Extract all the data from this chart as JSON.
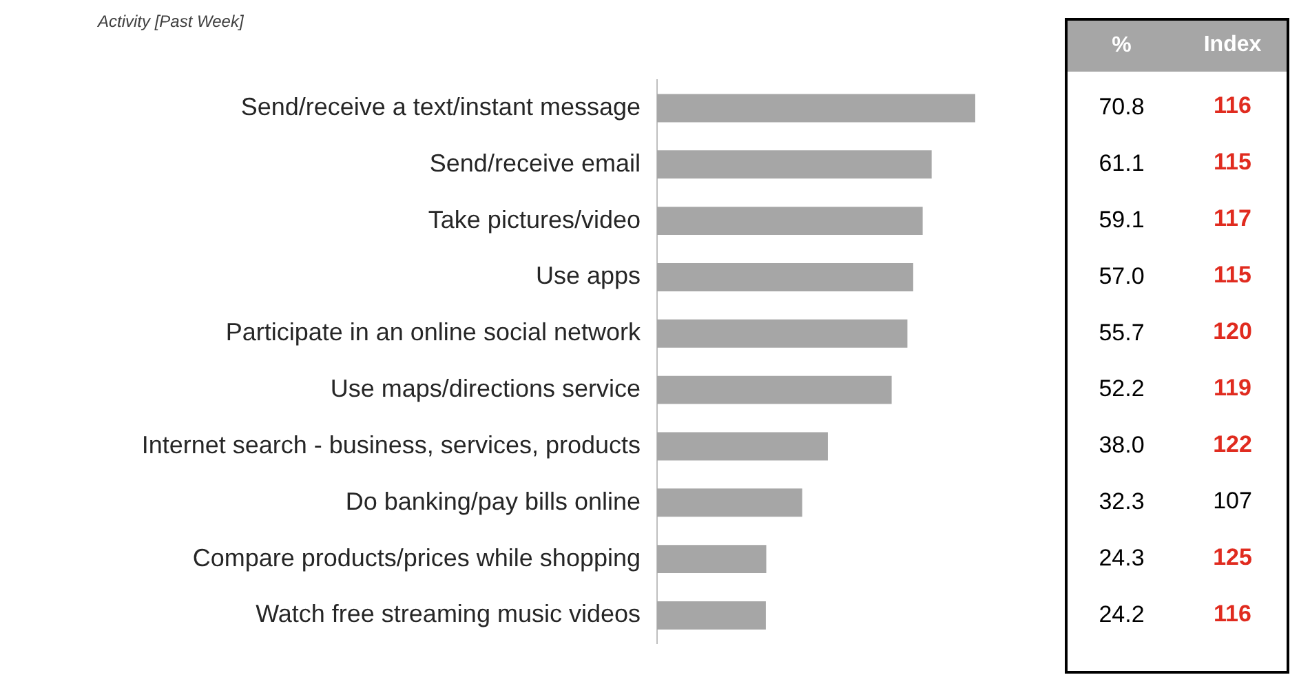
{
  "chart_data": [
    {
      "type": "bar",
      "orientation": "horizontal",
      "title": "Activity [Past Week]",
      "categories": [
        "Send/receive a text/instant message",
        "Send/receive email",
        "Take pictures/video",
        "Use apps",
        "Participate in an online social network",
        "Use maps/directions service",
        "Internet search - business, services, products",
        "Do banking/pay bills online",
        "Compare products/prices while shopping",
        "Watch free streaming music videos"
      ],
      "series": [
        {
          "name": "%",
          "color": "#a6a6a6",
          "values": [
            70.8,
            61.1,
            59.1,
            57.0,
            55.7,
            52.2,
            38.0,
            32.3,
            24.3,
            24.2
          ],
          "value_labels": [
            "70.8",
            "61.1",
            "59.1",
            "57.0",
            "55.7",
            "52.2",
            "38.0",
            "32.3",
            "24.3",
            "24.2"
          ]
        }
      ],
      "tick_labels": "y"
    },
    {
      "type": "other",
      "series": [
        {
          "name": "Index",
          "values": [
            116,
            115,
            117,
            115,
            120,
            119,
            122,
            107,
            125,
            116
          ],
          "value_labels": [
            "116",
            "115",
            "117",
            "115",
            "120",
            "119",
            "122",
            "107",
            "125",
            "116"
          ],
          "colors": [
            "#e02b1f",
            "#e02b1f",
            "#e02b1f",
            "#e02b1f",
            "#e02b1f",
            "#e02b1f",
            "#e02b1f",
            "#000000",
            "#e02b1f",
            "#e02b1f"
          ]
        }
      ]
    }
  ]
}
